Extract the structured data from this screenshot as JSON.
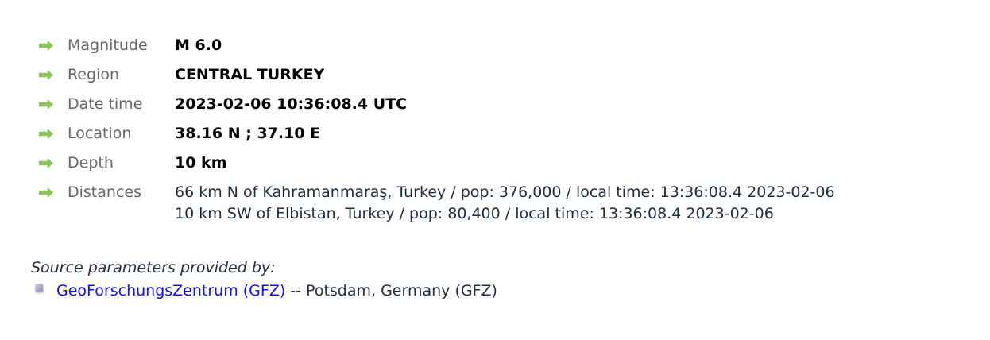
{
  "details": [
    {
      "label": "Magnitude",
      "value": "M 6.0"
    },
    {
      "label": "Region",
      "value": "CENTRAL TURKEY"
    },
    {
      "label": "Date time",
      "value": "2023-02-06 10:36:08.4 UTC"
    },
    {
      "label": "Location",
      "value": "38.16 N ; 37.10 E"
    },
    {
      "label": "Depth",
      "value": "10 km"
    }
  ],
  "distances": {
    "label": "Distances",
    "lines": [
      "66 km N of Kahramanmaraş, Turkey / pop: 376,000 / local time: 13:36:08.4 2023-02-06",
      "10 km SW of Elbistan, Turkey / pop: 80,400 / local time: 13:36:08.4 2023-02-06"
    ]
  },
  "source": {
    "heading": "Source parameters provided by:",
    "link": "GeoForschungsZentrum (GFZ)",
    "suffix": " -- Potsdam, Germany (GFZ)"
  },
  "colors": {
    "arrow": "#8cc55a",
    "link": "#1010e0"
  }
}
